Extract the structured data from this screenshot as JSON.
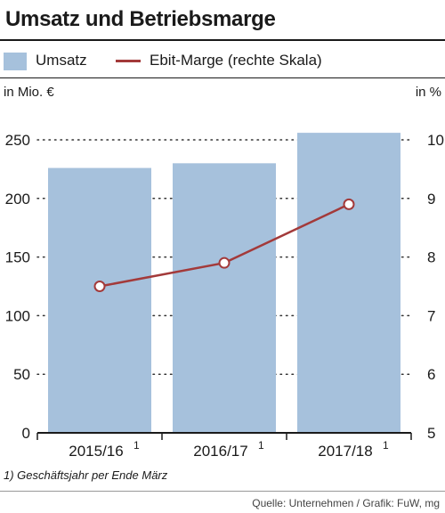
{
  "title": "Umsatz und Betriebsmarge",
  "legend": {
    "bar_label": "Umsatz",
    "line_label": "Ebit-Marge (rechte Skala)"
  },
  "units": {
    "left": "in Mio. €",
    "right": "in %"
  },
  "footnote": "1) Geschäftsjahr per Ende März",
  "source": "Quelle: Unternehmen / Grafik: FuW, mg",
  "colors": {
    "bar": "#a6c1dc",
    "line": "#a33a3a",
    "marker_fill": "#ffffff"
  },
  "chart_data": {
    "type": "bar",
    "categories": [
      "2015/16",
      "2016/17",
      "2017/18"
    ],
    "category_footnote_marks": [
      "1",
      "1",
      "1"
    ],
    "series": [
      {
        "name": "Umsatz",
        "type": "bar",
        "axis": "left",
        "values": [
          226,
          230,
          256
        ]
      },
      {
        "name": "Ebit-Marge (rechte Skala)",
        "type": "line",
        "axis": "right",
        "values": [
          7.5,
          7.9,
          8.9
        ]
      }
    ],
    "left_axis": {
      "ylim": [
        0,
        250
      ],
      "ticks": [
        0,
        50,
        100,
        150,
        200,
        250
      ],
      "tick_labels": [
        "0",
        "50",
        "100",
        "150",
        "200",
        "250"
      ]
    },
    "right_axis": {
      "ylim": [
        5,
        10
      ],
      "ticks": [
        5,
        6,
        7,
        8,
        9,
        10
      ],
      "tick_labels": [
        "5",
        "6",
        "7",
        "8",
        "9",
        "10"
      ]
    },
    "grid": "dotted-horizontal"
  }
}
